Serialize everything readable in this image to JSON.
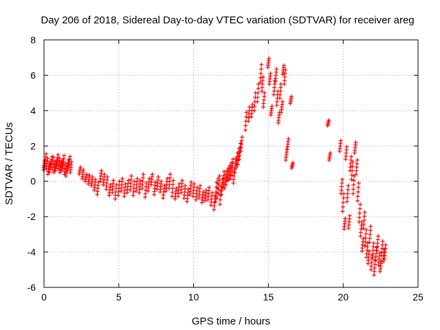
{
  "chart_data": {
    "type": "scatter",
    "title": "Day 206 of 2018, Sidereal Day-to-day VTEC variation (SDTVAR) for receiver areg",
    "xlabel": "GPS time / hours",
    "ylabel": "SDTVAR / TECUs",
    "xlim": [
      0,
      25
    ],
    "ylim": [
      -6,
      8
    ],
    "xticks": [
      0,
      5,
      10,
      15,
      20,
      25
    ],
    "yticks": [
      -6,
      -4,
      -2,
      0,
      2,
      4,
      6,
      8
    ],
    "grid": true,
    "marker": "+",
    "marker_color": "#ff0000",
    "series": [
      {
        "name": "SDTVAR",
        "x": [
          0.0,
          0.1,
          0.2,
          0.3,
          0.4,
          0.5,
          0.6,
          0.7,
          0.8,
          0.9,
          1.0,
          1.1,
          1.2,
          1.3,
          1.4,
          1.5,
          1.6,
          1.7,
          1.8,
          2.4,
          2.6,
          2.8,
          3.0,
          3.2,
          3.4,
          3.6,
          3.8,
          4.0,
          4.2,
          4.4,
          4.6,
          4.8,
          5.0,
          5.2,
          5.4,
          5.6,
          5.8,
          6.0,
          6.2,
          6.4,
          6.6,
          6.8,
          7.0,
          7.2,
          7.4,
          7.6,
          7.8,
          8.0,
          8.2,
          8.4,
          8.6,
          8.8,
          9.0,
          9.2,
          9.4,
          9.6,
          9.8,
          10.0,
          10.2,
          10.4,
          10.6,
          10.8,
          11.0,
          11.2,
          11.4,
          11.5,
          11.6,
          11.7,
          11.8,
          11.9,
          12.0,
          12.1,
          12.2,
          12.3,
          12.4,
          12.5,
          12.6,
          12.7,
          12.8,
          12.9,
          13.0,
          13.1,
          13.2,
          13.5,
          13.7,
          13.9,
          14.1,
          14.3,
          14.5,
          14.6,
          14.7,
          15.0,
          15.1,
          15.2,
          15.4,
          15.5,
          15.6,
          15.7,
          15.8,
          15.9,
          16.0,
          16.1,
          16.2,
          16.3,
          16.5,
          16.6,
          19.0,
          19.1,
          19.8,
          19.9,
          20.0,
          20.1,
          20.2,
          20.3,
          20.4,
          20.5,
          20.6,
          20.7,
          20.8,
          20.9,
          21.0,
          21.1,
          21.2,
          21.3,
          21.4,
          21.5,
          21.6,
          21.7,
          21.8,
          21.9,
          22.0,
          22.1,
          22.2,
          22.3,
          22.4,
          22.5,
          22.6,
          22.7,
          22.8
        ],
        "y": [
          0.9,
          1.2,
          1.0,
          0.7,
          0.8,
          1.1,
          1.0,
          0.8,
          0.9,
          1.2,
          1.0,
          0.8,
          0.9,
          1.1,
          0.7,
          0.6,
          0.9,
          1.1,
          0.8,
          0.6,
          0.4,
          0.2,
          0.1,
          0.0,
          -0.2,
          -0.4,
          0.3,
          0.1,
          -0.1,
          -0.5,
          -0.3,
          -0.6,
          -0.4,
          -0.2,
          -0.5,
          -0.3,
          -0.1,
          -0.4,
          -0.2,
          -0.3,
          0.0,
          -0.5,
          -0.2,
          0.1,
          -0.4,
          -0.1,
          -0.3,
          -0.6,
          -0.2,
          0.0,
          -0.4,
          -0.7,
          -0.5,
          -0.3,
          -0.6,
          -0.8,
          -0.4,
          -0.5,
          -0.7,
          -0.6,
          -0.9,
          -0.8,
          -0.7,
          -1.0,
          -1.2,
          -0.6,
          -0.4,
          -0.2,
          -0.8,
          -0.3,
          0.1,
          0.0,
          0.2,
          0.4,
          0.5,
          0.6,
          0.8,
          0.3,
          0.9,
          1.2,
          1.4,
          1.7,
          2.1,
          3.4,
          3.8,
          4.0,
          4.5,
          5.0,
          6.1,
          5.5,
          4.6,
          6.7,
          5.8,
          4.0,
          5.3,
          6.0,
          4.7,
          3.6,
          5.1,
          4.2,
          6.3,
          5.9,
          1.5,
          2.1,
          4.6,
          0.9,
          3.3,
          1.4,
          2.0,
          -0.3,
          -1.2,
          -2.4,
          1.6,
          -0.7,
          -2.3,
          1.0,
          0.6,
          -0.2,
          1.9,
          0.8,
          -0.6,
          -1.8,
          -2.7,
          -3.6,
          -2.2,
          -3.2,
          -3.9,
          -4.3,
          -3.0,
          -4.6,
          -3.9,
          -4.9,
          -4.1,
          -3.5,
          -4.4,
          -4.8,
          -3.8,
          -4.2,
          -4.0
        ],
        "band": [
          0.25,
          0.35,
          0.3,
          0.3,
          0.3,
          0.3,
          0.35,
          0.3,
          0.3,
          0.3,
          0.3,
          0.3,
          0.3,
          0.35,
          0.3,
          0.3,
          0.3,
          0.3,
          0.3,
          0.2,
          0.25,
          0.2,
          0.25,
          0.25,
          0.3,
          0.35,
          0.3,
          0.3,
          0.35,
          0.3,
          0.35,
          0.4,
          0.4,
          0.35,
          0.35,
          0.35,
          0.4,
          0.4,
          0.35,
          0.35,
          0.4,
          0.4,
          0.35,
          0.3,
          0.35,
          0.35,
          0.3,
          0.35,
          0.35,
          0.4,
          0.45,
          0.3,
          0.35,
          0.35,
          0.35,
          0.35,
          0.35,
          0.35,
          0.35,
          0.35,
          0.3,
          0.3,
          0.35,
          0.35,
          0.4,
          0.55,
          0.55,
          0.5,
          0.5,
          0.45,
          0.45,
          0.4,
          0.4,
          0.35,
          0.4,
          0.45,
          0.45,
          0.4,
          0.4,
          0.4,
          0.45,
          0.45,
          0.4,
          0.5,
          0.4,
          0.35,
          0.5,
          0.5,
          0.5,
          0.4,
          0.4,
          0.25,
          0.3,
          0.25,
          0.4,
          0.35,
          0.4,
          0.3,
          0.4,
          0.3,
          0.25,
          0.4,
          0.3,
          0.3,
          0.2,
          0.15,
          0.15,
          0.2,
          0.3,
          0.4,
          0.5,
          0.3,
          0.35,
          0.45,
          0.35,
          0.4,
          0.5,
          0.5,
          0.3,
          0.4,
          0.5,
          0.5,
          0.4,
          0.35,
          0.45,
          0.45,
          0.4,
          0.35,
          0.45,
          0.4,
          0.4,
          0.4,
          0.35,
          0.4,
          0.35,
          0.3,
          0.4,
          0.35,
          0.4
        ]
      }
    ]
  }
}
